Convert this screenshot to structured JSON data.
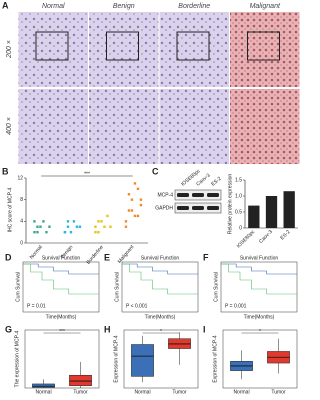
{
  "panel_a": {
    "label": "A",
    "columns": [
      "Normal",
      "Benign",
      "Borderline",
      "Malignant"
    ],
    "rows": [
      "200 ×",
      "400 ×"
    ]
  },
  "panel_b": {
    "label": "B",
    "type": "scatter",
    "ylabel": "IHC score of MCP-4",
    "categories": [
      "Normal",
      "Benign",
      "Borderline",
      "Malignant"
    ],
    "colors": [
      "#3aa88a",
      "#2bb7d6",
      "#e8c31c",
      "#f08a24"
    ],
    "series": [
      [
        2,
        3,
        3,
        4,
        2,
        3,
        4,
        2
      ],
      [
        2,
        3,
        2,
        4,
        3,
        3,
        2,
        4
      ],
      [
        3,
        2,
        4,
        3,
        5,
        3,
        2,
        4
      ],
      [
        4,
        6,
        8,
        5,
        10,
        7,
        3,
        9,
        6,
        11,
        5,
        8
      ]
    ],
    "ylim": [
      0,
      12
    ],
    "yticks": [
      0,
      4,
      8,
      12
    ],
    "annotation": "***"
  },
  "panel_c": {
    "label": "C",
    "blot_rows": [
      "MCP-4",
      "GAPDH"
    ],
    "lanes": [
      "IOSE80pc",
      "Caov-3",
      "ES-2"
    ],
    "chart": {
      "type": "bar",
      "ylabel": "Relative protein expression",
      "values": [
        0.7,
        1.0,
        1.15
      ],
      "color": "#222222",
      "ylim": [
        0,
        1.5
      ],
      "yticks": [
        0,
        0.5,
        {
          "value": 1,
          "label": "1.0"
        },
        1.5
      ]
    }
  },
  "survival": [
    {
      "label": "D",
      "title": "Survival Function",
      "pvalue": "P = 0.01",
      "xlabel": "Time(Months)",
      "ylabel": "Cum Survival"
    },
    {
      "label": "E",
      "title": "Survival Function",
      "pvalue": "P < 0.001",
      "xlabel": "Time(Months)",
      "ylabel": "Cum Survival"
    },
    {
      "label": "F",
      "title": "Survival Function",
      "pvalue": "P = 0.001",
      "xlabel": "Time(Months)",
      "ylabel": "Cum Survival"
    }
  ],
  "boxes": [
    {
      "label": "G",
      "type": "box",
      "ylabel": "The expression of MCP-4",
      "categories": [
        "Normal",
        "Tumor"
      ],
      "colors": [
        "#3b6fb6",
        "#e03a2f"
      ],
      "annotation": "***",
      "ylim": [
        0,
        10
      ],
      "stats": [
        {
          "min": 0,
          "q1": 0.1,
          "median": 0.3,
          "q3": 0.7,
          "max": 1.5
        },
        {
          "min": 0,
          "q1": 0.4,
          "median": 1.2,
          "q3": 2.2,
          "max": 4.5
        }
      ]
    },
    {
      "label": "H",
      "type": "box",
      "ylabel": "Expression of MCP-4",
      "categories": [
        "Normal",
        "Tumor"
      ],
      "colors": [
        "#3b6fb6",
        "#e03a2f"
      ],
      "annotation": "*",
      "ylim": [
        0,
        10
      ],
      "stats": [
        {
          "min": 1,
          "q1": 2,
          "median": 5.5,
          "q3": 7.5,
          "max": 9
        },
        {
          "min": 4,
          "q1": 6.8,
          "median": 7.6,
          "q3": 8.5,
          "max": 9.6
        }
      ]
    },
    {
      "label": "I",
      "type": "box",
      "ylabel": "Expression of MCP-4",
      "categories": [
        "Normal",
        "Tumor"
      ],
      "colors": [
        "#3b6fb6",
        "#e03a2f"
      ],
      "annotation": "*",
      "ylim": [
        0,
        10
      ],
      "stats": [
        {
          "min": 1.5,
          "q1": 3,
          "median": 3.8,
          "q3": 4.6,
          "max": 6.5
        },
        {
          "min": 2.5,
          "q1": 4.3,
          "median": 5.3,
          "q3": 6.3,
          "max": 8.5
        }
      ]
    }
  ]
}
